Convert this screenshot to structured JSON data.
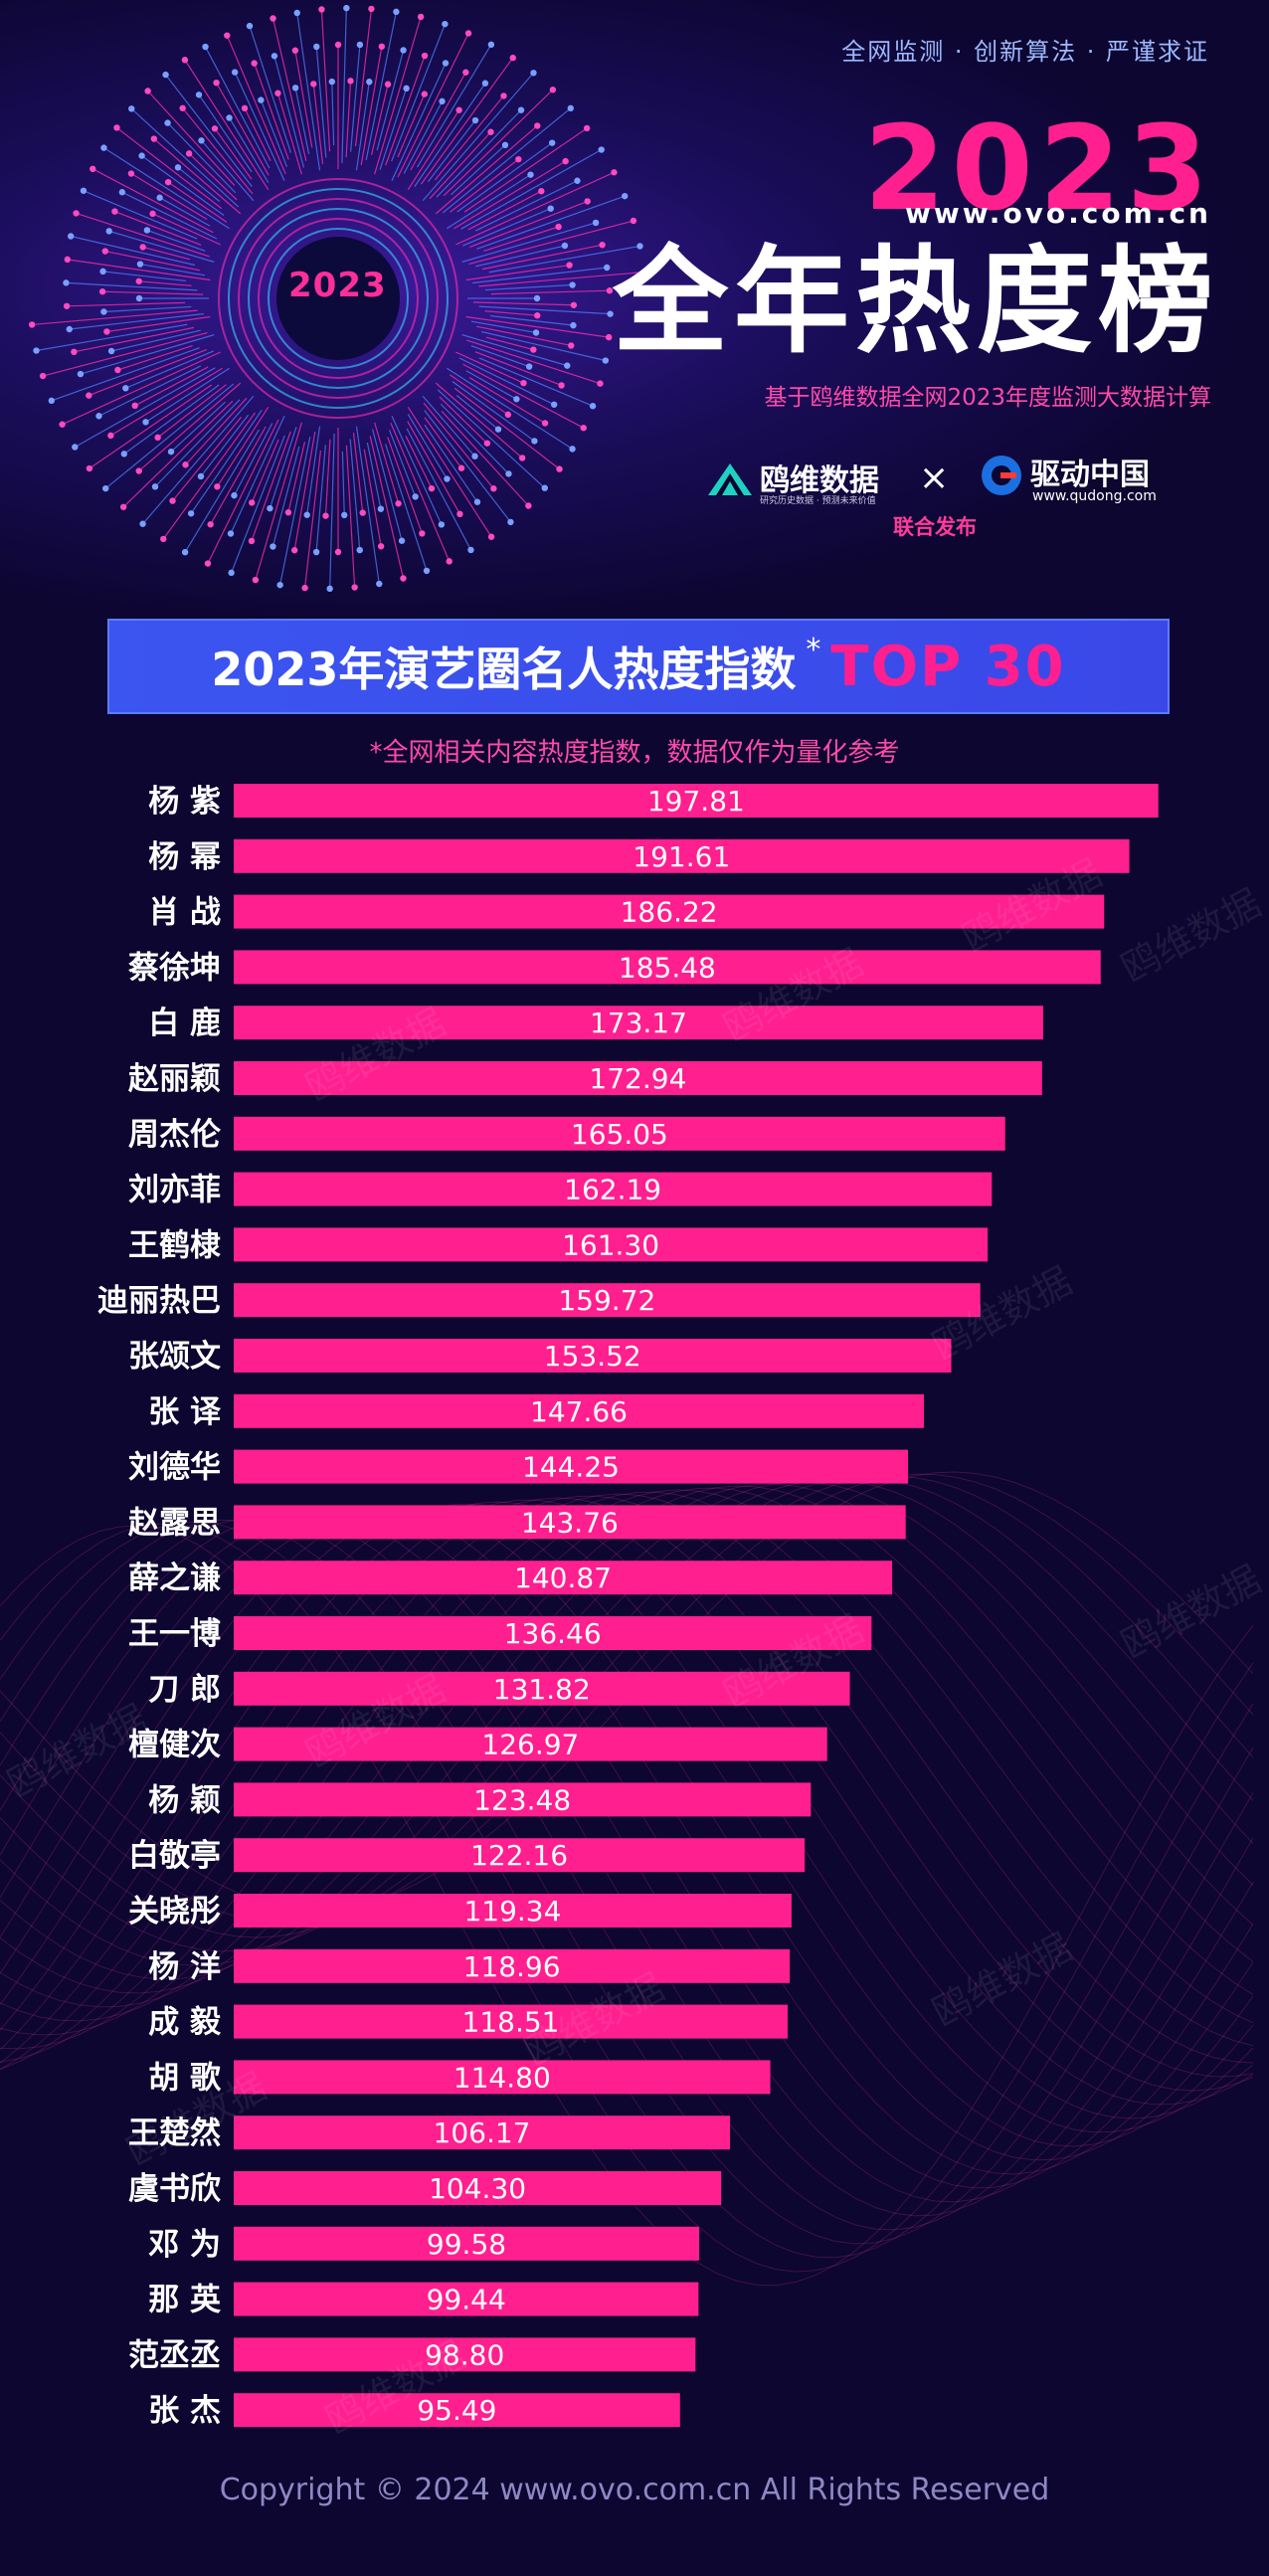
{
  "header": {
    "tagline": "全网监测 · 创新算法 · 严谨求证",
    "year": "2023",
    "url": "www.ovo.com.cn",
    "title": "全年热度榜",
    "subtitle": "基于鸥维数据全网2023年度监测大数据计算",
    "badge_text": "2023"
  },
  "logos": {
    "ovo_name": "鸥维数据",
    "ovo_slogan": "研究历史数据 · 预测未来价值",
    "times": "×",
    "qudong_name": "驱动中国",
    "qudong_url": "www.qudong.com",
    "joint": "联合发布"
  },
  "banner": {
    "main": "2023年演艺圈名人热度指数",
    "asterisk": "*",
    "top": "TOP 30"
  },
  "note": "*全网相关内容热度指数，数据仅作为量化参考",
  "watermark": "鸥维数据",
  "colors": {
    "bar": "#ff1f8e",
    "background": "#0c0630",
    "banner": "#3a4bea",
    "accent": "#ff4aa8"
  },
  "chart_data": {
    "type": "bar",
    "orientation": "horizontal",
    "categories": [
      "杨 紫",
      "杨 幂",
      "肖 战",
      "蔡徐坤",
      "白 鹿",
      "赵丽颖",
      "周杰伦",
      "刘亦菲",
      "王鹤棣",
      "迪丽热巴",
      "张颂文",
      "张 译",
      "刘德华",
      "赵露思",
      "薛之谦",
      "王一博",
      "刀 郎",
      "檀健次",
      "杨 颖",
      "白敬亭",
      "关晓彤",
      "杨 洋",
      "成 毅",
      "胡 歌",
      "王楚然",
      "虞书欣",
      "邓 为",
      "那 英",
      "范丞丞",
      "张 杰"
    ],
    "values": [
      197.81,
      191.61,
      186.22,
      185.48,
      173.17,
      172.94,
      165.05,
      162.19,
      161.3,
      159.72,
      153.52,
      147.66,
      144.25,
      143.76,
      140.87,
      136.46,
      131.82,
      126.97,
      123.48,
      122.16,
      119.34,
      118.96,
      118.51,
      114.8,
      106.17,
      104.3,
      99.58,
      99.44,
      98.8,
      95.49
    ],
    "labels": [
      "197.81",
      "191.61",
      "186.22",
      "185.48",
      "173.17",
      "172.94",
      "165.05",
      "162.19",
      "161.30",
      "159.72",
      "153.52",
      "147.66",
      "144.25",
      "143.76",
      "140.87",
      "136.46",
      "131.82",
      "126.97",
      "123.48",
      "122.16",
      "119.34",
      "118.96",
      "118.51",
      "114.80",
      "106.17",
      "104.30",
      "99.58",
      "99.44",
      "98.80",
      "95.49"
    ],
    "xlim": [
      0,
      200
    ],
    "grid": false,
    "legend": "none"
  },
  "footer": "Copyright © 2024  www.ovo.com.cn All Rights Reserved"
}
